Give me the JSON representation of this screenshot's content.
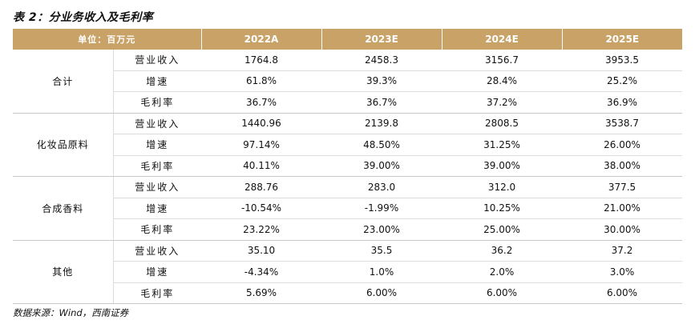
{
  "title": "表 2：分业务收入及毛利率",
  "header": {
    "unit_label": "单位：百万元",
    "years": [
      "2022A",
      "2023E",
      "2024E",
      "2025E"
    ]
  },
  "groups": [
    {
      "name": "合计",
      "rows": [
        {
          "metric": "营业收入",
          "values": [
            "1764.8",
            "2458.3",
            "3156.7",
            "3953.5"
          ]
        },
        {
          "metric": "增速",
          "values": [
            "61.8%",
            "39.3%",
            "28.4%",
            "25.2%"
          ]
        },
        {
          "metric": "毛利率",
          "values": [
            "36.7%",
            "36.7%",
            "37.2%",
            "36.9%"
          ]
        }
      ]
    },
    {
      "name": "化妆品原料",
      "rows": [
        {
          "metric": "营业收入",
          "values": [
            "1440.96",
            "2139.8",
            "2808.5",
            "3538.7"
          ]
        },
        {
          "metric": "增速",
          "values": [
            "97.14%",
            "48.50%",
            "31.25%",
            "26.00%"
          ]
        },
        {
          "metric": "毛利率",
          "values": [
            "40.11%",
            "39.00%",
            "39.00%",
            "38.00%"
          ]
        }
      ]
    },
    {
      "name": "合成香料",
      "rows": [
        {
          "metric": "营业收入",
          "values": [
            "288.76",
            "283.0",
            "312.0",
            "377.5"
          ]
        },
        {
          "metric": "增速",
          "values": [
            "-10.54%",
            "-1.99%",
            "10.25%",
            "21.00%"
          ]
        },
        {
          "metric": "毛利率",
          "values": [
            "23.22%",
            "23.00%",
            "25.00%",
            "30.00%"
          ]
        }
      ]
    },
    {
      "name": "其他",
      "rows": [
        {
          "metric": "营业收入",
          "values": [
            "35.10",
            "35.5",
            "36.2",
            "37.2"
          ]
        },
        {
          "metric": "增速",
          "values": [
            "-4.34%",
            "1.0%",
            "2.0%",
            "3.0%"
          ]
        },
        {
          "metric": "毛利率",
          "values": [
            "5.69%",
            "6.00%",
            "6.00%",
            "6.00%"
          ]
        }
      ]
    }
  ],
  "footer": "数据来源：Wind，西南证券",
  "colors": {
    "header_bg": "#c8a266",
    "header_text": "#ffffff",
    "rule": "#dcdcdc"
  }
}
